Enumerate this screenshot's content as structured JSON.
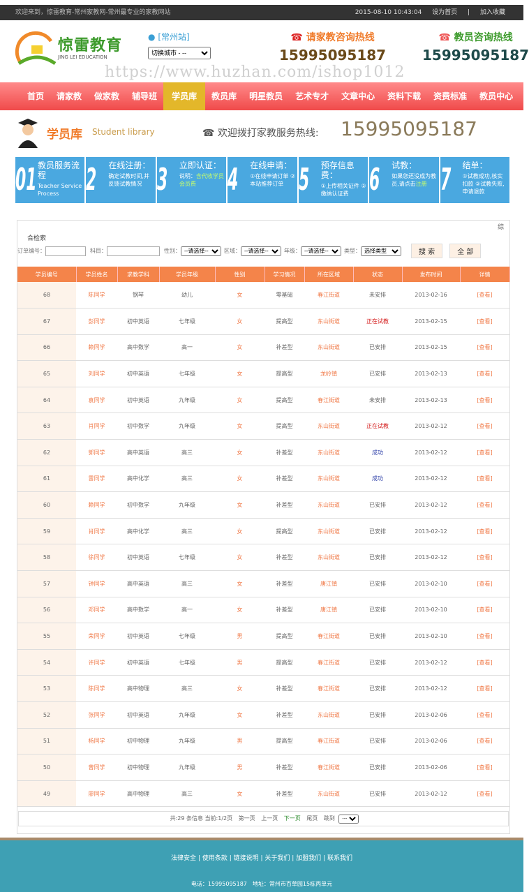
{
  "topbar": {
    "welcome": "欢迎来到，惊雷教育-常州家教网-常州最专业的家教网站",
    "datetime": "2015-08-10 10:43:04",
    "set_home": "设为首页",
    "sep": "|",
    "bookmark": "加入收藏"
  },
  "header": {
    "logo_cn": "惊雷教育",
    "logo_en": "JING LEI EDUCATION",
    "city": "[常州站]",
    "city_select": "切换城市 - --",
    "hotline1_label": "请家教咨询热线",
    "hotline1": "15995095187",
    "hotline2_label": "教员咨询热线",
    "hotline2": "15995095187"
  },
  "nav": [
    "首页",
    "请家教",
    "做家教",
    "辅导班",
    "学员库",
    "教员库",
    "明星教员",
    "艺术专才",
    "文章中心",
    "资料下载",
    "资费标准",
    "教员中心"
  ],
  "page": {
    "title": "学员库",
    "subtitle": "Student library",
    "hotline_label": "欢迎拨打家教服务热线:",
    "hotline": "15995095187"
  },
  "steps": [
    {
      "num": "01",
      "title": "教员服务流程",
      "desc": "Teacher Service Process",
      "hl": ""
    },
    {
      "num": "2",
      "title": "在线注册：",
      "desc": "确定试教时间,并反馈试教情况",
      "hl": ""
    },
    {
      "num": "3",
      "title": "立即认证：",
      "desc": "说明：",
      "hl": "含代收学员会员费"
    },
    {
      "num": "4",
      "title": "在线申请：",
      "desc": "①在线申请订单 ②本站推荐订单",
      "hl": ""
    },
    {
      "num": "5",
      "title": "预存信息费：",
      "desc": "①上传相关证件 ②缴纳认证费",
      "hl": ""
    },
    {
      "num": "6",
      "title": "试教：",
      "desc": "如果您还没成为教员,请点击",
      "hl": "注册"
    },
    {
      "num": "7",
      "title": "结单：",
      "desc": "①试教成功,核实扣款 ②试教失败,申请退款",
      "hl": ""
    }
  ],
  "search": {
    "zong": "综",
    "caption": "合检索",
    "order_label": "订单编号：",
    "subject_label": "科目：",
    "gender_label": "性别：",
    "gender": "--请选择--",
    "area_label": "区域：",
    "area": "--请选择--",
    "grade_label": "年级：",
    "grade": "--请选择--",
    "type_label": "类型：",
    "type": "选择类型",
    "search_btn": "搜 索",
    "all_btn": "全 部"
  },
  "table": {
    "headers": [
      "学员编号",
      "学员姓名",
      "求教学科",
      "学员年级",
      "性别",
      "学习情况",
      "所在区域",
      "状态",
      "发布时间",
      "详情"
    ],
    "rows": [
      [
        "68",
        "陈同学",
        "钢琴",
        "幼儿",
        "女",
        "零基础",
        "春江街道",
        "未安排",
        "2013-02-16",
        "[查看]"
      ],
      [
        "67",
        "彭同学",
        "初中英语",
        "七年级",
        "女",
        "提高型",
        "东山街道",
        "正在试教",
        "2013-02-15",
        "[查看]"
      ],
      [
        "66",
        "赖同学",
        "高中数学",
        "高一",
        "女",
        "补差型",
        "东山街道",
        "已安排",
        "2013-02-15",
        "[查看]"
      ],
      [
        "65",
        "刘同学",
        "初中英语",
        "七年级",
        "女",
        "提高型",
        "龙岭镇",
        "已安排",
        "2013-02-13",
        "[查看]"
      ],
      [
        "64",
        "袁同学",
        "初中英语",
        "九年级",
        "女",
        "提高型",
        "春江街道",
        "未安排",
        "2013-02-13",
        "[查看]"
      ],
      [
        "63",
        "肖同学",
        "初中数学",
        "九年级",
        "女",
        "提高型",
        "东山街道",
        "正在试教",
        "2013-02-12",
        "[查看]"
      ],
      [
        "62",
        "郭同学",
        "高中英语",
        "高三",
        "女",
        "补差型",
        "东山街道",
        "成功",
        "2013-02-12",
        "[查看]"
      ],
      [
        "61",
        "雷同学",
        "高中化学",
        "高三",
        "女",
        "补差型",
        "东山街道",
        "成功",
        "2013-02-12",
        "[查看]"
      ],
      [
        "60",
        "赖同学",
        "初中数学",
        "九年级",
        "女",
        "补差型",
        "东山街道",
        "已安排",
        "2013-02-12",
        "[查看]"
      ],
      [
        "59",
        "肖同学",
        "高中化学",
        "高三",
        "女",
        "提高型",
        "东山街道",
        "已安排",
        "2013-02-12",
        "[查看]"
      ],
      [
        "58",
        "徐同学",
        "初中英语",
        "七年级",
        "女",
        "补差型",
        "东山街道",
        "已安排",
        "2013-02-12",
        "[查看]"
      ],
      [
        "57",
        "钟同学",
        "高中英语",
        "高三",
        "女",
        "补差型",
        "唐江镇",
        "已安排",
        "2013-02-10",
        "[查看]"
      ],
      [
        "56",
        "邓同学",
        "高中数学",
        "高一",
        "女",
        "补差型",
        "唐江镇",
        "已安排",
        "2013-02-10",
        "[查看]"
      ],
      [
        "55",
        "荣同学",
        "初中英语",
        "七年级",
        "男",
        "提高型",
        "春江街道",
        "已安排",
        "2013-02-10",
        "[查看]"
      ],
      [
        "54",
        "许同学",
        "初中英语",
        "七年级",
        "男",
        "提高型",
        "春江街道",
        "已安排",
        "2013-02-12",
        "[查看]"
      ],
      [
        "53",
        "陈同学",
        "高中物理",
        "高三",
        "女",
        "补差型",
        "春江街道",
        "已安排",
        "2013-02-12",
        "[查看]"
      ],
      [
        "52",
        "张同学",
        "初中英语",
        "九年级",
        "女",
        "补差型",
        "东山街道",
        "已安排",
        "2013-02-06",
        "[查看]"
      ],
      [
        "51",
        "杨同学",
        "初中物理",
        "九年级",
        "男",
        "提高型",
        "春江街道",
        "已安排",
        "2013-02-06",
        "[查看]"
      ],
      [
        "50",
        "曾同学",
        "初中物理",
        "九年级",
        "男",
        "补差型",
        "春江街道",
        "已安排",
        "2013-02-06",
        "[查看]"
      ],
      [
        "49",
        "廖同学",
        "高中物理",
        "高三",
        "女",
        "补差型",
        "东山街道",
        "已安排",
        "2013-02-12",
        "[查看]"
      ]
    ]
  },
  "pager": {
    "info": "共:29 条信息 当前:1/2页",
    "first": "第一页",
    "prev": "上一页",
    "next": "下一页",
    "last": "尾页",
    "jump": "跳到",
    "jump_select": "---"
  },
  "footer": {
    "links": [
      "法律安全",
      "使用条款",
      "链接说明",
      "关于我们",
      "加盟我们",
      "联系我们"
    ],
    "address": "电话：15995095187　地址：常州市百草园15栋丙单元"
  },
  "watermark": "https://www.huzhan.com/ishop1012",
  "colors": {
    "nav": "#f04a4a",
    "nav_active": "#e3b72a",
    "table_header": "#f4844a",
    "steps": "#4aa8e0",
    "footer": "#3ea0b4"
  }
}
